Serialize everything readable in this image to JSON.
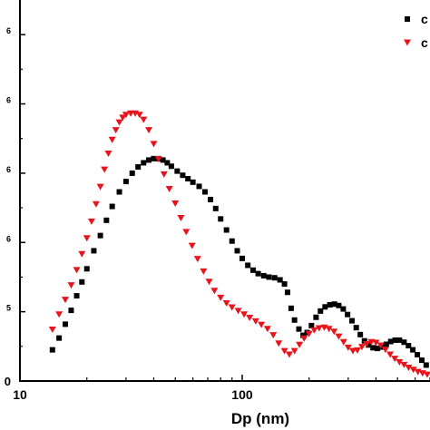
{
  "chart_data": {
    "type": "scatter",
    "title": "",
    "xlabel": "Dp (nm)",
    "ylabel": "",
    "x_scale": "log",
    "xlim": [
      10,
      700
    ],
    "ylim": [
      0,
      5.5
    ],
    "x_tick_labels": [
      "10",
      "100"
    ],
    "y_tick_labels": [
      {
        "text": "0",
        "sup": ""
      },
      {
        "text": "",
        "sup": "5"
      },
      {
        "text": "",
        "sup": "6"
      },
      {
        "text": "",
        "sup": "6"
      },
      {
        "text": "",
        "sup": "6"
      },
      {
        "text": "",
        "sup": "6"
      }
    ],
    "grid": false,
    "legend": {
      "position": "top-right",
      "entries": [
        {
          "label": "c",
          "marker": "square",
          "color": "#000000"
        },
        {
          "label": "c",
          "marker": "triangle-down",
          "color": "#e8141c"
        }
      ]
    },
    "series": [
      {
        "marker": "square",
        "color": "#000000",
        "points": [
          [
            14.0,
            0.45
          ],
          [
            15.0,
            0.62
          ],
          [
            16.0,
            0.82
          ],
          [
            17.0,
            1.02
          ],
          [
            18.0,
            1.23
          ],
          [
            19.0,
            1.43
          ],
          [
            20.0,
            1.62
          ],
          [
            21.5,
            1.88
          ],
          [
            23.0,
            2.1
          ],
          [
            24.5,
            2.32
          ],
          [
            26.0,
            2.52
          ],
          [
            28.0,
            2.73
          ],
          [
            30.0,
            2.88
          ],
          [
            32.0,
            3.0
          ],
          [
            34.0,
            3.09
          ],
          [
            36.0,
            3.15
          ],
          [
            38.0,
            3.19
          ],
          [
            40.0,
            3.21
          ],
          [
            42.0,
            3.21
          ],
          [
            44.0,
            3.19
          ],
          [
            46.0,
            3.15
          ],
          [
            48.0,
            3.1
          ],
          [
            51.0,
            3.03
          ],
          [
            54.0,
            2.97
          ],
          [
            57.0,
            2.92
          ],
          [
            60.0,
            2.87
          ],
          [
            64.0,
            2.81
          ],
          [
            68.0,
            2.73
          ],
          [
            72.0,
            2.62
          ],
          [
            76.0,
            2.49
          ],
          [
            80.0,
            2.34
          ],
          [
            85.0,
            2.18
          ],
          [
            90.0,
            2.02
          ],
          [
            95.0,
            1.88
          ],
          [
            100.0,
            1.77
          ],
          [
            106.0,
            1.67
          ],
          [
            112.0,
            1.6
          ],
          [
            118.0,
            1.55
          ],
          [
            125.0,
            1.52
          ],
          [
            132.0,
            1.5
          ],
          [
            140.0,
            1.49
          ],
          [
            148.0,
            1.46
          ],
          [
            155.0,
            1.4
          ],
          [
            160.0,
            1.28
          ],
          [
            166.0,
            1.05
          ],
          [
            172.0,
            0.88
          ],
          [
            180.0,
            0.75
          ],
          [
            188.0,
            0.66
          ],
          [
            196.0,
            0.7
          ],
          [
            205.0,
            0.8
          ],
          [
            215.0,
            0.92
          ],
          [
            225.0,
            1.01
          ],
          [
            236.0,
            1.07
          ],
          [
            248.0,
            1.1
          ],
          [
            260.0,
            1.11
          ],
          [
            272.0,
            1.09
          ],
          [
            285.0,
            1.04
          ],
          [
            298.0,
            0.96
          ],
          [
            312.0,
            0.87
          ],
          [
            326.0,
            0.77
          ],
          [
            340.0,
            0.67
          ],
          [
            355.0,
            0.58
          ],
          [
            370.0,
            0.52
          ],
          [
            388.0,
            0.48
          ],
          [
            406.0,
            0.47
          ],
          [
            425.0,
            0.49
          ],
          [
            445.0,
            0.53
          ],
          [
            466.0,
            0.57
          ],
          [
            488.0,
            0.59
          ],
          [
            510.0,
            0.59
          ],
          [
            535.0,
            0.56
          ],
          [
            560.0,
            0.51
          ],
          [
            586.0,
            0.45
          ],
          [
            614.0,
            0.38
          ],
          [
            643.0,
            0.3
          ],
          [
            673.0,
            0.23
          ]
        ]
      },
      {
        "marker": "triangle-down",
        "color": "#e8141c",
        "points": [
          [
            14.0,
            0.74
          ],
          [
            15.0,
            0.96
          ],
          [
            16.0,
            1.17
          ],
          [
            17.0,
            1.38
          ],
          [
            18.0,
            1.6
          ],
          [
            19.0,
            1.83
          ],
          [
            20.0,
            2.06
          ],
          [
            21.0,
            2.3
          ],
          [
            22.0,
            2.55
          ],
          [
            23.0,
            2.8
          ],
          [
            24.0,
            3.05
          ],
          [
            25.0,
            3.28
          ],
          [
            26.0,
            3.48
          ],
          [
            27.0,
            3.62
          ],
          [
            28.0,
            3.73
          ],
          [
            29.0,
            3.8
          ],
          [
            30.0,
            3.84
          ],
          [
            31.5,
            3.86
          ],
          [
            33.0,
            3.86
          ],
          [
            34.5,
            3.84
          ],
          [
            36.0,
            3.77
          ],
          [
            38.0,
            3.62
          ],
          [
            40.0,
            3.42
          ],
          [
            42.0,
            3.2
          ],
          [
            44.5,
            2.98
          ],
          [
            47.0,
            2.77
          ],
          [
            50.0,
            2.56
          ],
          [
            53.0,
            2.35
          ],
          [
            56.0,
            2.15
          ],
          [
            59.5,
            1.95
          ],
          [
            63.0,
            1.76
          ],
          [
            67.0,
            1.58
          ],
          [
            71.0,
            1.43
          ],
          [
            75.0,
            1.3
          ],
          [
            80.0,
            1.2
          ],
          [
            85.0,
            1.12
          ],
          [
            90.0,
            1.06
          ],
          [
            96.0,
            1.01
          ],
          [
            102.0,
            0.96
          ],
          [
            108.0,
            0.91
          ],
          [
            115.0,
            0.86
          ],
          [
            122.0,
            0.81
          ],
          [
            130.0,
            0.75
          ],
          [
            138.0,
            0.66
          ],
          [
            146.0,
            0.54
          ],
          [
            155.0,
            0.43
          ],
          [
            163.0,
            0.38
          ],
          [
            172.0,
            0.43
          ],
          [
            181.0,
            0.52
          ],
          [
            190.0,
            0.61
          ],
          [
            200.0,
            0.68
          ],
          [
            211.0,
            0.73
          ],
          [
            222.0,
            0.76
          ],
          [
            234.0,
            0.77
          ],
          [
            246.0,
            0.75
          ],
          [
            259.0,
            0.71
          ],
          [
            272.0,
            0.64
          ],
          [
            286.0,
            0.56
          ],
          [
            300.0,
            0.48
          ],
          [
            315.0,
            0.43
          ],
          [
            330.0,
            0.44
          ],
          [
            346.0,
            0.49
          ],
          [
            363.0,
            0.53
          ],
          [
            381.0,
            0.56
          ],
          [
            400.0,
            0.55
          ],
          [
            420.0,
            0.51
          ],
          [
            441.0,
            0.45
          ],
          [
            463.0,
            0.38
          ],
          [
            486.0,
            0.32
          ],
          [
            510.0,
            0.27
          ],
          [
            535.0,
            0.23
          ],
          [
            561.0,
            0.19
          ],
          [
            589.0,
            0.16
          ],
          [
            618.0,
            0.13
          ],
          [
            648.0,
            0.11
          ],
          [
            680.0,
            0.09
          ]
        ]
      }
    ]
  }
}
